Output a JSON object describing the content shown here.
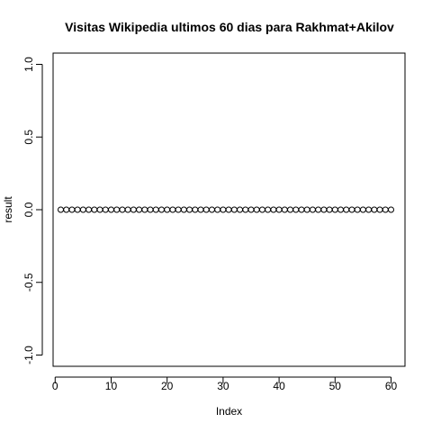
{
  "chart_data": {
    "type": "scatter",
    "title": "Visitas Wikipedia ultimos 60 dias para Rakhmat+Akilov",
    "xlabel": "Index",
    "ylabel": "result",
    "xlim": [
      1,
      60
    ],
    "ylim": [
      -1.0,
      1.0
    ],
    "xticks": [
      0,
      10,
      20,
      30,
      40,
      50,
      60
    ],
    "xtick_labels": [
      "0",
      "10",
      "20",
      "30",
      "40",
      "50",
      "60"
    ],
    "yticks": [
      -1.0,
      -0.5,
      0.0,
      0.5,
      1.0
    ],
    "ytick_labels": [
      "-1.0",
      "-0.5",
      "0.0",
      "0.5",
      "1.0"
    ],
    "grid": false,
    "marker": "open-circle",
    "color": "#000000",
    "series": [
      {
        "x": [
          1,
          2,
          3,
          4,
          5,
          6,
          7,
          8,
          9,
          10,
          11,
          12,
          13,
          14,
          15,
          16,
          17,
          18,
          19,
          20,
          21,
          22,
          23,
          24,
          25,
          26,
          27,
          28,
          29,
          30,
          31,
          32,
          33,
          34,
          35,
          36,
          37,
          38,
          39,
          40,
          41,
          42,
          43,
          44,
          45,
          46,
          47,
          48,
          49,
          50,
          51,
          52,
          53,
          54,
          55,
          56,
          57,
          58,
          59,
          60
        ],
        "y": [
          0,
          0,
          0,
          0,
          0,
          0,
          0,
          0,
          0,
          0,
          0,
          0,
          0,
          0,
          0,
          0,
          0,
          0,
          0,
          0,
          0,
          0,
          0,
          0,
          0,
          0,
          0,
          0,
          0,
          0,
          0,
          0,
          0,
          0,
          0,
          0,
          0,
          0,
          0,
          0,
          0,
          0,
          0,
          0,
          0,
          0,
          0,
          0,
          0,
          0,
          0,
          0,
          0,
          0,
          0,
          0,
          0,
          0,
          0,
          0
        ]
      }
    ]
  }
}
